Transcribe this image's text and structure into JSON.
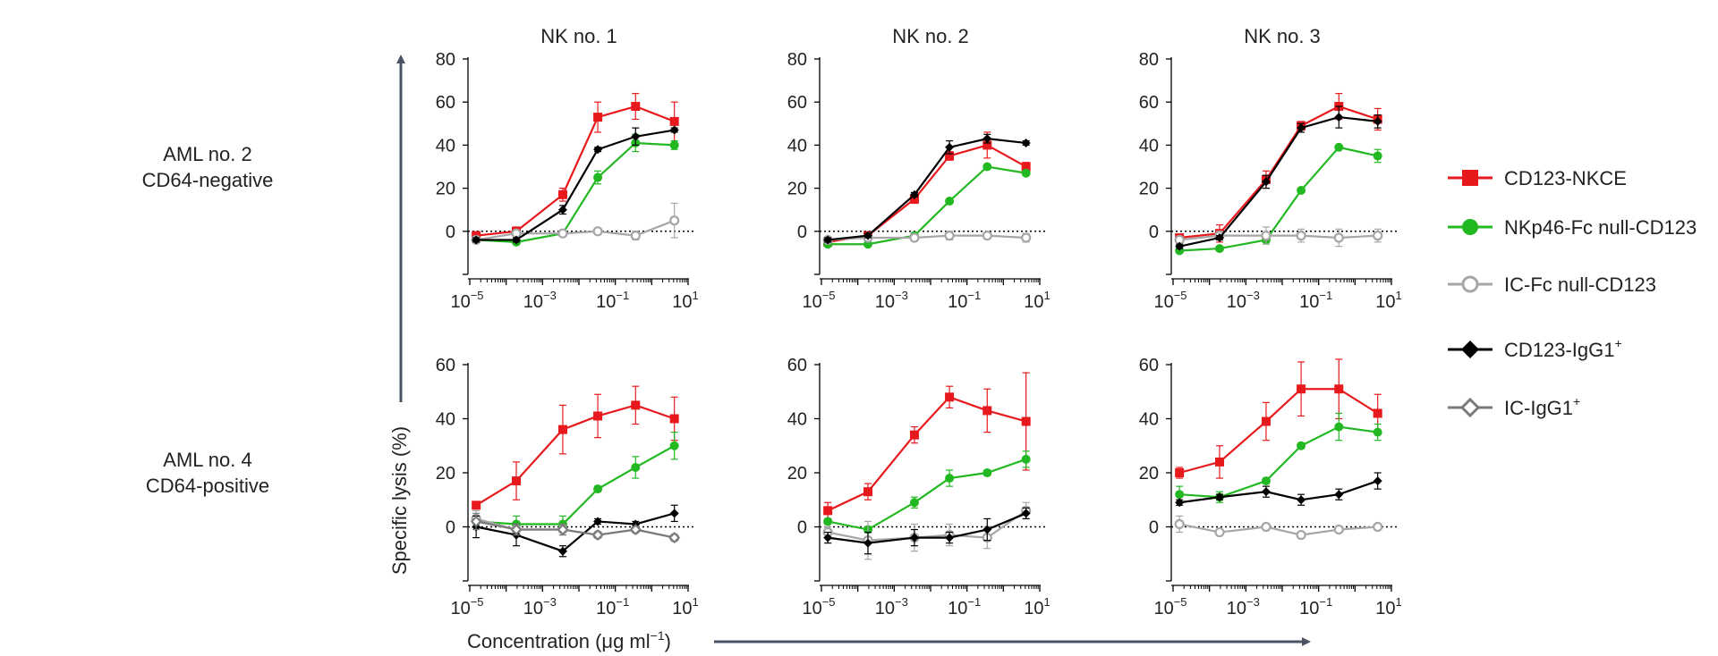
{
  "figure": {
    "ylabel": "Specific lysis (%)",
    "xlabel_main": "Concentration (μg ml",
    "xlabel_sup": "−1",
    "xlabel_close": ")",
    "row_labels": [
      {
        "line1": "AML no. 2",
        "line2": "CD64-negative"
      },
      {
        "line1": "AML no. 4",
        "line2": "CD64-positive"
      }
    ],
    "column_titles": [
      "NK no. 1",
      "NK no. 2",
      "NK no. 3"
    ],
    "x_tick_base": "10",
    "x_tick_exponents": [
      "−5",
      "−3",
      "−1",
      "1"
    ]
  },
  "legend": [
    {
      "name": "CD123-NKCE",
      "sup": "",
      "color": "#e8191c",
      "marker": "square"
    },
    {
      "name": "NKp46-Fc null-CD123",
      "sup": "",
      "color": "#22b822",
      "marker": "circle"
    },
    {
      "name": "IC-Fc null-CD123",
      "sup": "",
      "color": "#a6a6a6",
      "marker": "open-circle"
    },
    {
      "name": "CD123-IgG1",
      "sup": "+",
      "color": "#000000",
      "marker": "diamond"
    },
    {
      "name": "IC-IgG1",
      "sup": "+",
      "color": "#7a7a7a",
      "marker": "open-diamond"
    }
  ],
  "chart_data": [
    {
      "type": "line",
      "title": "NK no. 1",
      "row": "AML no. 2 CD64-negative",
      "xscale": "log10",
      "xlim": [
        1e-05,
        10
      ],
      "ylim": [
        -20,
        80
      ],
      "yticks": [
        0,
        20,
        40,
        60,
        80
      ],
      "x": [
        1.5e-05,
        0.00019,
        0.0036,
        0.033,
        0.36,
        4.2
      ],
      "series": [
        {
          "name": "CD123-NKCE",
          "values": [
            -2,
            0,
            17,
            53,
            58,
            51
          ],
          "err": [
            1,
            2,
            3,
            7,
            6,
            9
          ]
        },
        {
          "name": "NKp46-Fc null-CD123",
          "values": [
            -4,
            -5,
            -1,
            25,
            41,
            40
          ],
          "err": [
            1,
            1,
            1,
            3,
            4,
            2
          ]
        },
        {
          "name": "IC-Fc null-CD123",
          "values": [
            -4,
            -1,
            -1,
            0,
            -2,
            5
          ],
          "err": [
            1,
            1,
            1,
            1,
            2,
            8
          ]
        },
        {
          "name": "CD123-IgG1+",
          "values": [
            -4,
            -4,
            10,
            38,
            44,
            47
          ],
          "err": [
            1,
            1,
            2,
            1,
            4,
            1
          ]
        }
      ]
    },
    {
      "type": "line",
      "title": "NK no. 2",
      "row": "AML no. 2 CD64-negative",
      "xscale": "log10",
      "xlim": [
        1e-05,
        10
      ],
      "ylim": [
        -20,
        80
      ],
      "yticks": [
        0,
        20,
        40,
        60,
        80
      ],
      "x": [
        1.5e-05,
        0.00019,
        0.0036,
        0.033,
        0.36,
        4.2
      ],
      "series": [
        {
          "name": "CD123-NKCE",
          "values": [
            -5,
            -2,
            15,
            35,
            40,
            30
          ],
          "err": [
            1,
            1,
            2,
            2,
            6,
            2
          ]
        },
        {
          "name": "NKp46-Fc null-CD123",
          "values": [
            -6,
            -6,
            -2,
            14,
            30,
            27
          ],
          "err": [
            1,
            1,
            1,
            1,
            1,
            1
          ]
        },
        {
          "name": "IC-Fc null-CD123",
          "values": [
            -4,
            -3,
            -3,
            -2,
            -2,
            -3
          ],
          "err": [
            1,
            1,
            1,
            2,
            1,
            2
          ]
        },
        {
          "name": "CD123-IgG1+",
          "values": [
            -4,
            -2,
            17,
            39,
            43,
            41
          ],
          "err": [
            1,
            1,
            1,
            3,
            2,
            1
          ]
        }
      ]
    },
    {
      "type": "line",
      "title": "NK no. 3",
      "row": "AML no. 2 CD64-negative",
      "xscale": "log10",
      "xlim": [
        1e-05,
        10
      ],
      "ylim": [
        -20,
        80
      ],
      "yticks": [
        0,
        20,
        40,
        60,
        80
      ],
      "x": [
        1.5e-05,
        0.00019,
        0.0036,
        0.033,
        0.36,
        4.2
      ],
      "series": [
        {
          "name": "CD123-NKCE",
          "values": [
            -3,
            -1,
            24,
            49,
            58,
            52
          ],
          "err": [
            1,
            4,
            4,
            2,
            6,
            5
          ]
        },
        {
          "name": "NKp46-Fc null-CD123",
          "values": [
            -9,
            -8,
            -4,
            19,
            39,
            35
          ],
          "err": [
            1,
            1,
            1,
            1,
            1,
            3
          ]
        },
        {
          "name": "IC-Fc null-CD123",
          "values": [
            -4,
            -2,
            -2,
            -2,
            -3,
            -2
          ],
          "err": [
            1,
            2,
            4,
            3,
            4,
            3
          ]
        },
        {
          "name": "CD123-IgG1+",
          "values": [
            -7,
            -3,
            23,
            48,
            53,
            51
          ],
          "err": [
            1,
            1,
            3,
            2,
            5,
            3
          ]
        }
      ]
    },
    {
      "type": "line",
      "title": "NK no. 1",
      "row": "AML no. 4 CD64-positive",
      "xscale": "log10",
      "xlim": [
        1e-05,
        10
      ],
      "ylim": [
        -20,
        60
      ],
      "yticks": [
        0,
        20,
        40,
        60
      ],
      "x": [
        1.5e-05,
        0.00019,
        0.0036,
        0.033,
        0.36,
        4.2
      ],
      "series": [
        {
          "name": "CD123-NKCE",
          "values": [
            8,
            17,
            36,
            41,
            45,
            40
          ],
          "err": [
            1,
            7,
            9,
            8,
            7,
            8
          ]
        },
        {
          "name": "NKp46-Fc null-CD123",
          "values": [
            2,
            1,
            1,
            14,
            22,
            30
          ],
          "err": [
            2,
            3,
            3,
            1,
            4,
            5
          ]
        },
        {
          "name": "IC-Fc null-CD123",
          "values": [
            3,
            -1,
            -1,
            -3,
            -1,
            -4
          ],
          "err": [
            3,
            2,
            2,
            1,
            1,
            1
          ]
        },
        {
          "name": "CD123-IgG1+",
          "values": [
            0,
            -3,
            -9,
            2,
            1,
            5
          ],
          "err": [
            4,
            4,
            2,
            1,
            1,
            3
          ]
        },
        {
          "name": "IC-IgG1+",
          "values": [
            2,
            -1,
            -1,
            -3,
            -1,
            -4
          ],
          "err": [
            3,
            2,
            2,
            1,
            1,
            1
          ]
        }
      ]
    },
    {
      "type": "line",
      "title": "NK no. 2",
      "row": "AML no. 4 CD64-positive",
      "xscale": "log10",
      "xlim": [
        1e-05,
        10
      ],
      "ylim": [
        -20,
        60
      ],
      "yticks": [
        0,
        20,
        40,
        60
      ],
      "x": [
        1.5e-05,
        0.00019,
        0.0036,
        0.033,
        0.36,
        4.2
      ],
      "series": [
        {
          "name": "CD123-NKCE",
          "values": [
            6,
            13,
            34,
            48,
            43,
            39
          ],
          "err": [
            3,
            3,
            3,
            4,
            8,
            18
          ]
        },
        {
          "name": "NKp46-Fc null-CD123",
          "values": [
            2,
            -1,
            9,
            18,
            20,
            25
          ],
          "err": [
            1,
            1,
            2,
            3,
            1,
            3
          ]
        },
        {
          "name": "IC-Fc null-CD123",
          "values": [
            -2,
            -5,
            -4,
            -3,
            -4,
            6
          ],
          "err": [
            2,
            7,
            5,
            4,
            4,
            3
          ]
        },
        {
          "name": "CD123-IgG1+",
          "values": [
            -4,
            -6,
            -4,
            -4,
            -1,
            5
          ],
          "err": [
            2,
            4,
            3,
            2,
            4,
            2
          ]
        }
      ]
    },
    {
      "type": "line",
      "title": "NK no. 3",
      "row": "AML no. 4 CD64-positive",
      "xscale": "log10",
      "xlim": [
        1e-05,
        10
      ],
      "ylim": [
        -20,
        60
      ],
      "yticks": [
        0,
        20,
        40,
        60
      ],
      "x": [
        1.5e-05,
        0.00019,
        0.0036,
        0.033,
        0.36,
        4.2
      ],
      "series": [
        {
          "name": "CD123-NKCE",
          "values": [
            20,
            24,
            39,
            51,
            51,
            42
          ],
          "err": [
            2,
            6,
            7,
            10,
            11,
            7
          ]
        },
        {
          "name": "NKp46-Fc null-CD123",
          "values": [
            12,
            11,
            17,
            30,
            37,
            35
          ],
          "err": [
            3,
            2,
            1,
            1,
            5,
            3
          ]
        },
        {
          "name": "IC-Fc null-CD123",
          "values": [
            1,
            -2,
            0,
            -3,
            -1,
            0
          ],
          "err": [
            3,
            1,
            1,
            1,
            1,
            1
          ]
        },
        {
          "name": "CD123-IgG1+",
          "values": [
            9,
            11,
            13,
            10,
            12,
            17
          ],
          "err": [
            1,
            1,
            2,
            2,
            2,
            3
          ]
        }
      ]
    }
  ]
}
